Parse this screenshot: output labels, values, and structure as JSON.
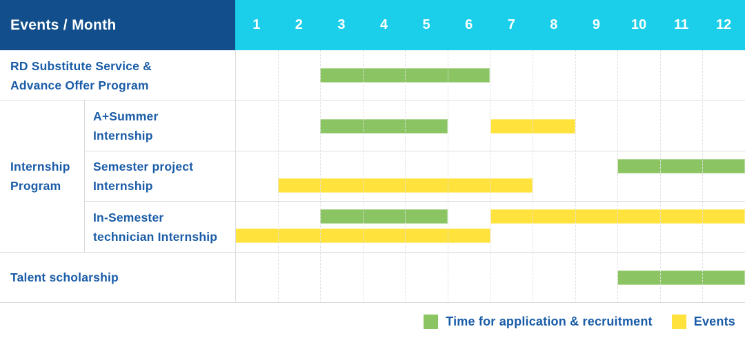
{
  "header": {
    "title": "Events / Month"
  },
  "chart_data": {
    "type": "table",
    "subtype": "gantt-schedule",
    "title": "Events / Month",
    "categories": [
      "1",
      "2",
      "3",
      "4",
      "5",
      "6",
      "7",
      "8",
      "9",
      "10",
      "11",
      "12"
    ],
    "group_label_lines": [
      "Internship",
      "Program"
    ],
    "rows": [
      {
        "label_lines": [
          "RD Substitute Service &",
          "Advance Offer Program"
        ],
        "group": "",
        "bars": [
          {
            "kind": "recruitment",
            "start": 3,
            "end": 6,
            "lane": "center"
          }
        ]
      },
      {
        "label_lines": [
          "A+Summer",
          "Internship"
        ],
        "group": "internship",
        "bars": [
          {
            "kind": "recruitment",
            "start": 3,
            "end": 5,
            "lane": "center"
          },
          {
            "kind": "events",
            "start": 7,
            "end": 8,
            "lane": "center"
          }
        ]
      },
      {
        "label_lines": [
          "Semester project",
          "Internship"
        ],
        "group": "internship",
        "bars": [
          {
            "kind": "recruitment",
            "start": 10,
            "end": 12,
            "lane": "upper"
          },
          {
            "kind": "events",
            "start": 2,
            "end": 7,
            "lane": "lower"
          }
        ]
      },
      {
        "label_lines": [
          "In-Semester",
          "technician Internship"
        ],
        "group": "internship",
        "bars": [
          {
            "kind": "recruitment",
            "start": 3,
            "end": 5,
            "lane": "upper"
          },
          {
            "kind": "events",
            "start": 7,
            "end": 12,
            "lane": "upper"
          },
          {
            "kind": "events",
            "start": 1,
            "end": 6,
            "lane": "lower"
          }
        ]
      },
      {
        "label_lines": [
          "Talent scholarship"
        ],
        "group": "",
        "bars": [
          {
            "kind": "recruitment",
            "start": 10,
            "end": 12,
            "lane": "center"
          }
        ]
      }
    ],
    "legend": [
      {
        "kind": "recruitment",
        "label": "Time for application & recruitment"
      },
      {
        "kind": "events",
        "label": "Events"
      }
    ],
    "legend_position": "bottom-right",
    "grid": true
  },
  "colors": {
    "header_bg": "#114E8B",
    "months_bg": "#1BCEE9",
    "recruitment": "#8BC563",
    "events": "#FFE33C",
    "label_text": "#1A5CA7",
    "grid_h": "#DBDBDB",
    "grid_v_dashed": "#E0E0E0"
  }
}
